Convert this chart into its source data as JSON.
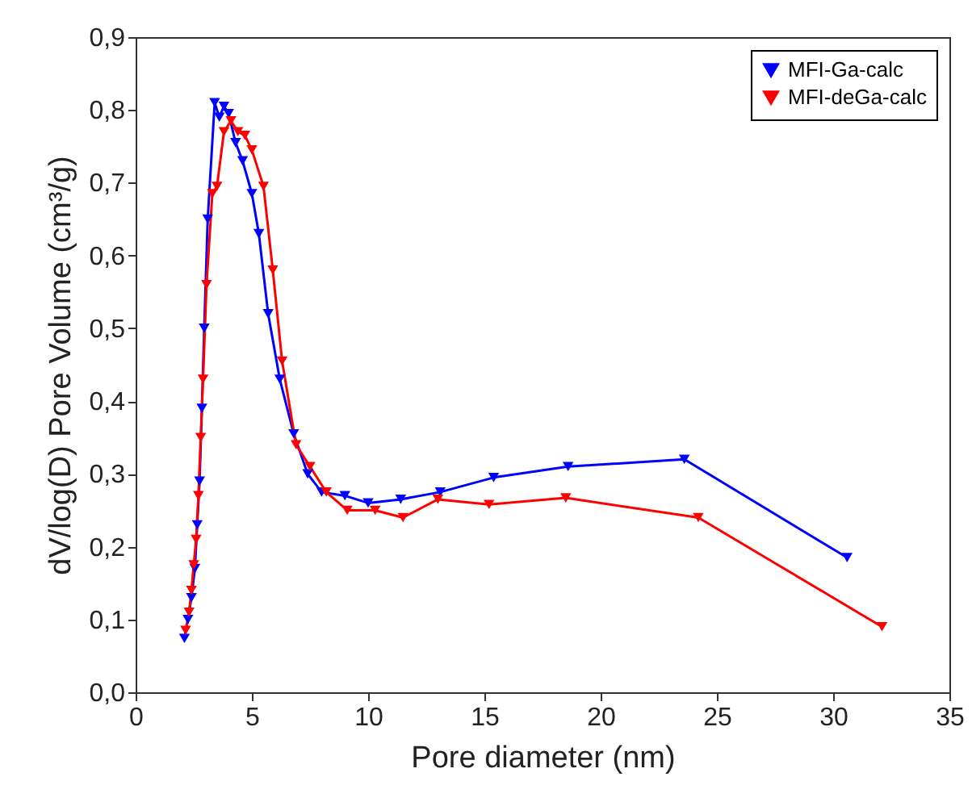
{
  "chart_data": {
    "type": "line",
    "xlabel": "Pore diameter (nm)",
    "ylabel": "dV/log(D) Pore Volume (cm³/g)",
    "xlim": [
      0,
      35
    ],
    "xticks": [
      0,
      5,
      10,
      15,
      20,
      25,
      30,
      35
    ],
    "ylim": [
      0,
      0.9
    ],
    "yticks": [
      {
        "value": 0,
        "label": "0,0"
      },
      {
        "value": 0.1,
        "label": "0,1"
      },
      {
        "value": 0.2,
        "label": "0,2"
      },
      {
        "value": 0.3,
        "label": "0,3"
      },
      {
        "value": 0.4,
        "label": "0,4"
      },
      {
        "value": 0.5,
        "label": "0,5"
      },
      {
        "value": 0.6,
        "label": "0,6"
      },
      {
        "value": 0.7,
        "label": "0,7"
      },
      {
        "value": 0.8,
        "label": "0,8"
      },
      {
        "value": 0.9,
        "label": "0,9"
      }
    ],
    "marker": "triangle",
    "legend": "top right",
    "grid": false,
    "series": [
      {
        "name": "MFI-Ga-calc",
        "color": "#0000ff",
        "x": [
          2.1,
          2.25,
          2.4,
          2.55,
          2.65,
          2.75,
          2.85,
          2.95,
          3.1,
          3.4,
          3.6,
          3.8,
          4.0,
          4.3,
          4.6,
          5.0,
          5.3,
          5.7,
          6.2,
          6.8,
          7.4,
          8.0,
          9.0,
          10.0,
          11.4,
          13.1,
          15.4,
          18.6,
          23.6,
          30.6
        ],
        "values": [
          0.074,
          0.1,
          0.13,
          0.17,
          0.23,
          0.29,
          0.39,
          0.5,
          0.65,
          0.81,
          0.79,
          0.805,
          0.795,
          0.755,
          0.73,
          0.685,
          0.63,
          0.52,
          0.43,
          0.355,
          0.3,
          0.275,
          0.27,
          0.26,
          0.265,
          0.275,
          0.295,
          0.31,
          0.32,
          0.185
        ]
      },
      {
        "name": "MFI-deGa-calc",
        "color": "#ff0000",
        "x": [
          2.15,
          2.3,
          2.4,
          2.5,
          2.6,
          2.7,
          2.8,
          2.9,
          3.05,
          3.3,
          3.5,
          3.8,
          4.1,
          4.4,
          4.7,
          5.0,
          5.5,
          5.9,
          6.3,
          6.9,
          7.5,
          8.2,
          9.1,
          10.3,
          11.5,
          13.0,
          15.2,
          18.5,
          24.2,
          32.1
        ],
        "values": [
          0.085,
          0.11,
          0.14,
          0.175,
          0.21,
          0.27,
          0.35,
          0.43,
          0.56,
          0.685,
          0.695,
          0.77,
          0.785,
          0.77,
          0.765,
          0.745,
          0.695,
          0.58,
          0.455,
          0.34,
          0.31,
          0.275,
          0.25,
          0.25,
          0.24,
          0.265,
          0.258,
          0.267,
          0.24,
          0.09
        ]
      }
    ]
  }
}
